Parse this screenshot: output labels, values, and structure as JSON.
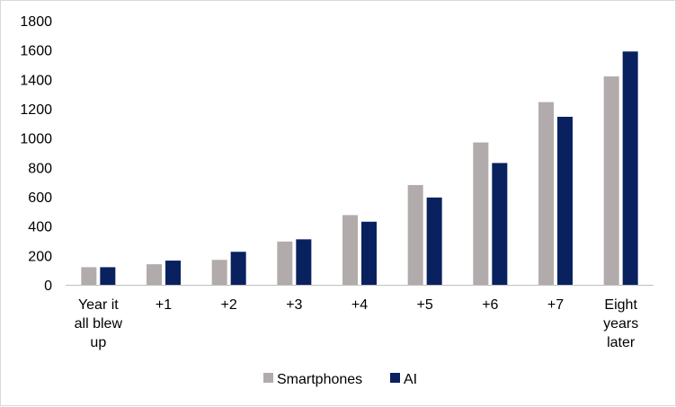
{
  "chart_data": {
    "type": "bar",
    "title": "",
    "xlabel": "",
    "ylabel": "",
    "ylim": [
      0,
      1800
    ],
    "yticks": [
      0,
      200,
      400,
      600,
      800,
      1000,
      1200,
      1400,
      1600,
      1800
    ],
    "grid": false,
    "legend_position": "bottom",
    "categories": [
      [
        "Year it",
        "all blew",
        "up"
      ],
      [
        "+1"
      ],
      [
        "+2"
      ],
      [
        "+3"
      ],
      [
        "+4"
      ],
      [
        "+5"
      ],
      [
        "+6"
      ],
      [
        "+7"
      ],
      [
        "Eight",
        "years",
        "later"
      ]
    ],
    "series": [
      {
        "name": "Smartphones",
        "color": "#b1acab",
        "values": [
          120,
          140,
          170,
          295,
          475,
          680,
          970,
          1245,
          1420
        ]
      },
      {
        "name": "AI",
        "color": "#0a2160",
        "values": [
          120,
          165,
          225,
          310,
          430,
          595,
          830,
          1145,
          1590
        ]
      }
    ]
  }
}
